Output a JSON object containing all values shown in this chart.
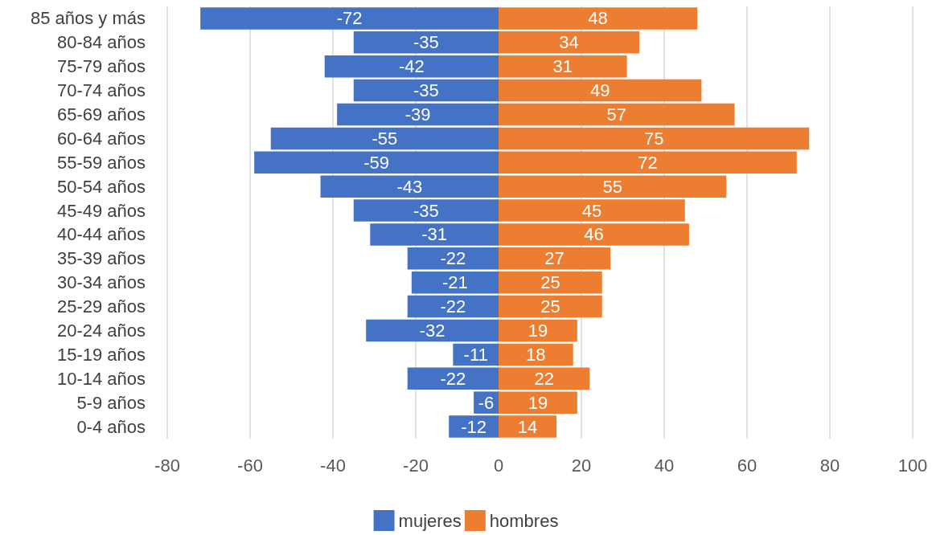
{
  "chart_data": {
    "type": "bar",
    "orientation": "horizontal",
    "stacked": true,
    "categories": [
      "85 años y más",
      "80-84 años",
      "75-79 años",
      "70-74 años",
      "65-69 años",
      "60-64 años",
      "55-59 años",
      "50-54 años",
      "45-49 años",
      "40-44 años",
      "35-39 años",
      "30-34 años",
      "25-29 años",
      "20-24 años",
      "15-19 años",
      "10-14 años",
      "5-9 años",
      "0-4 años"
    ],
    "series": [
      {
        "name": "mujeres",
        "color": "#4472c4",
        "values": [
          -72,
          -35,
          -42,
          -35,
          -39,
          -55,
          -59,
          -43,
          -35,
          -31,
          -22,
          -21,
          -22,
          -32,
          -11,
          -22,
          -6,
          -12
        ]
      },
      {
        "name": "hombres",
        "color": "#ed7d31",
        "values": [
          48,
          34,
          31,
          49,
          57,
          75,
          72,
          55,
          45,
          46,
          27,
          25,
          25,
          19,
          18,
          22,
          19,
          14
        ]
      }
    ],
    "xlim": [
      -80,
      100
    ],
    "xticks": [
      -80,
      -60,
      -40,
      -20,
      0,
      20,
      40,
      60,
      80,
      100
    ],
    "grid": "x",
    "legend": "bottom",
    "data_labels": true
  }
}
